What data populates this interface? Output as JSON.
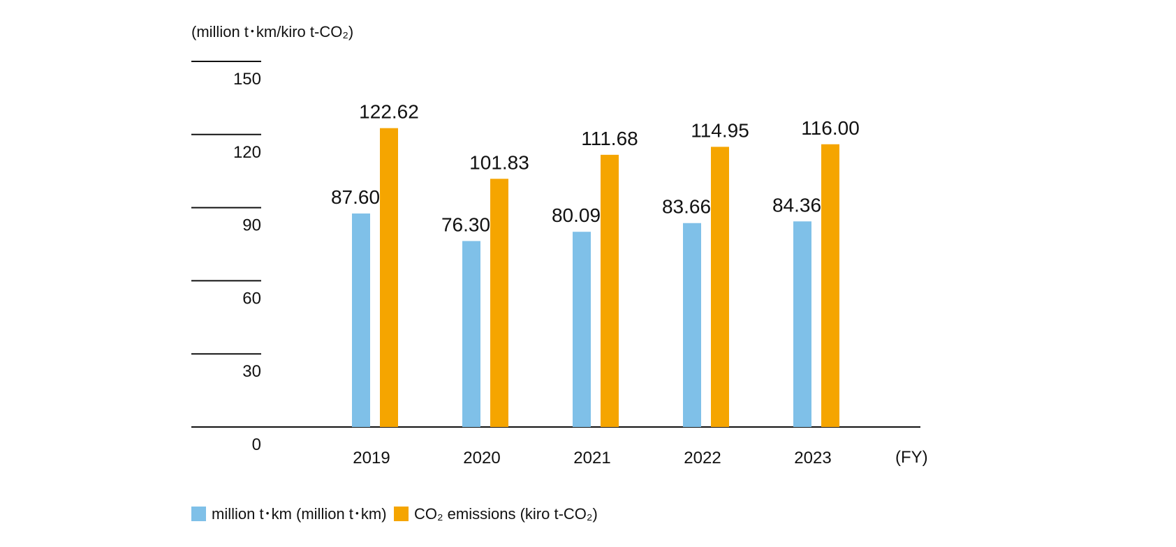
{
  "chart_data": {
    "type": "bar",
    "unit_label": "(million t･km/kiro t-CO₂)",
    "xlabel": "(FY)",
    "categories": [
      "2019",
      "2020",
      "2021",
      "2022",
      "2023"
    ],
    "series": [
      {
        "name": "million t･km (million t･km)",
        "color": "#7fc0e8",
        "values": [
          87.6,
          76.3,
          80.09,
          83.66,
          84.36
        ],
        "labels": [
          "87.60",
          "76.30",
          "80.09",
          "83.66",
          "84.36"
        ]
      },
      {
        "name": "CO₂ emissions (kiro t-CO₂)",
        "color": "#f5a500",
        "values": [
          122.62,
          101.83,
          111.68,
          114.95,
          116.0
        ],
        "labels": [
          "122.62",
          "101.83",
          "111.68",
          "114.95",
          "116.00"
        ]
      }
    ],
    "ylim": [
      0,
      150
    ],
    "yticks": [
      0,
      30,
      60,
      90,
      120,
      150
    ],
    "ytick_labels": [
      "0",
      "30",
      "60",
      "90",
      "120",
      "150"
    ],
    "grid": false,
    "legend_position": "bottom-left"
  }
}
